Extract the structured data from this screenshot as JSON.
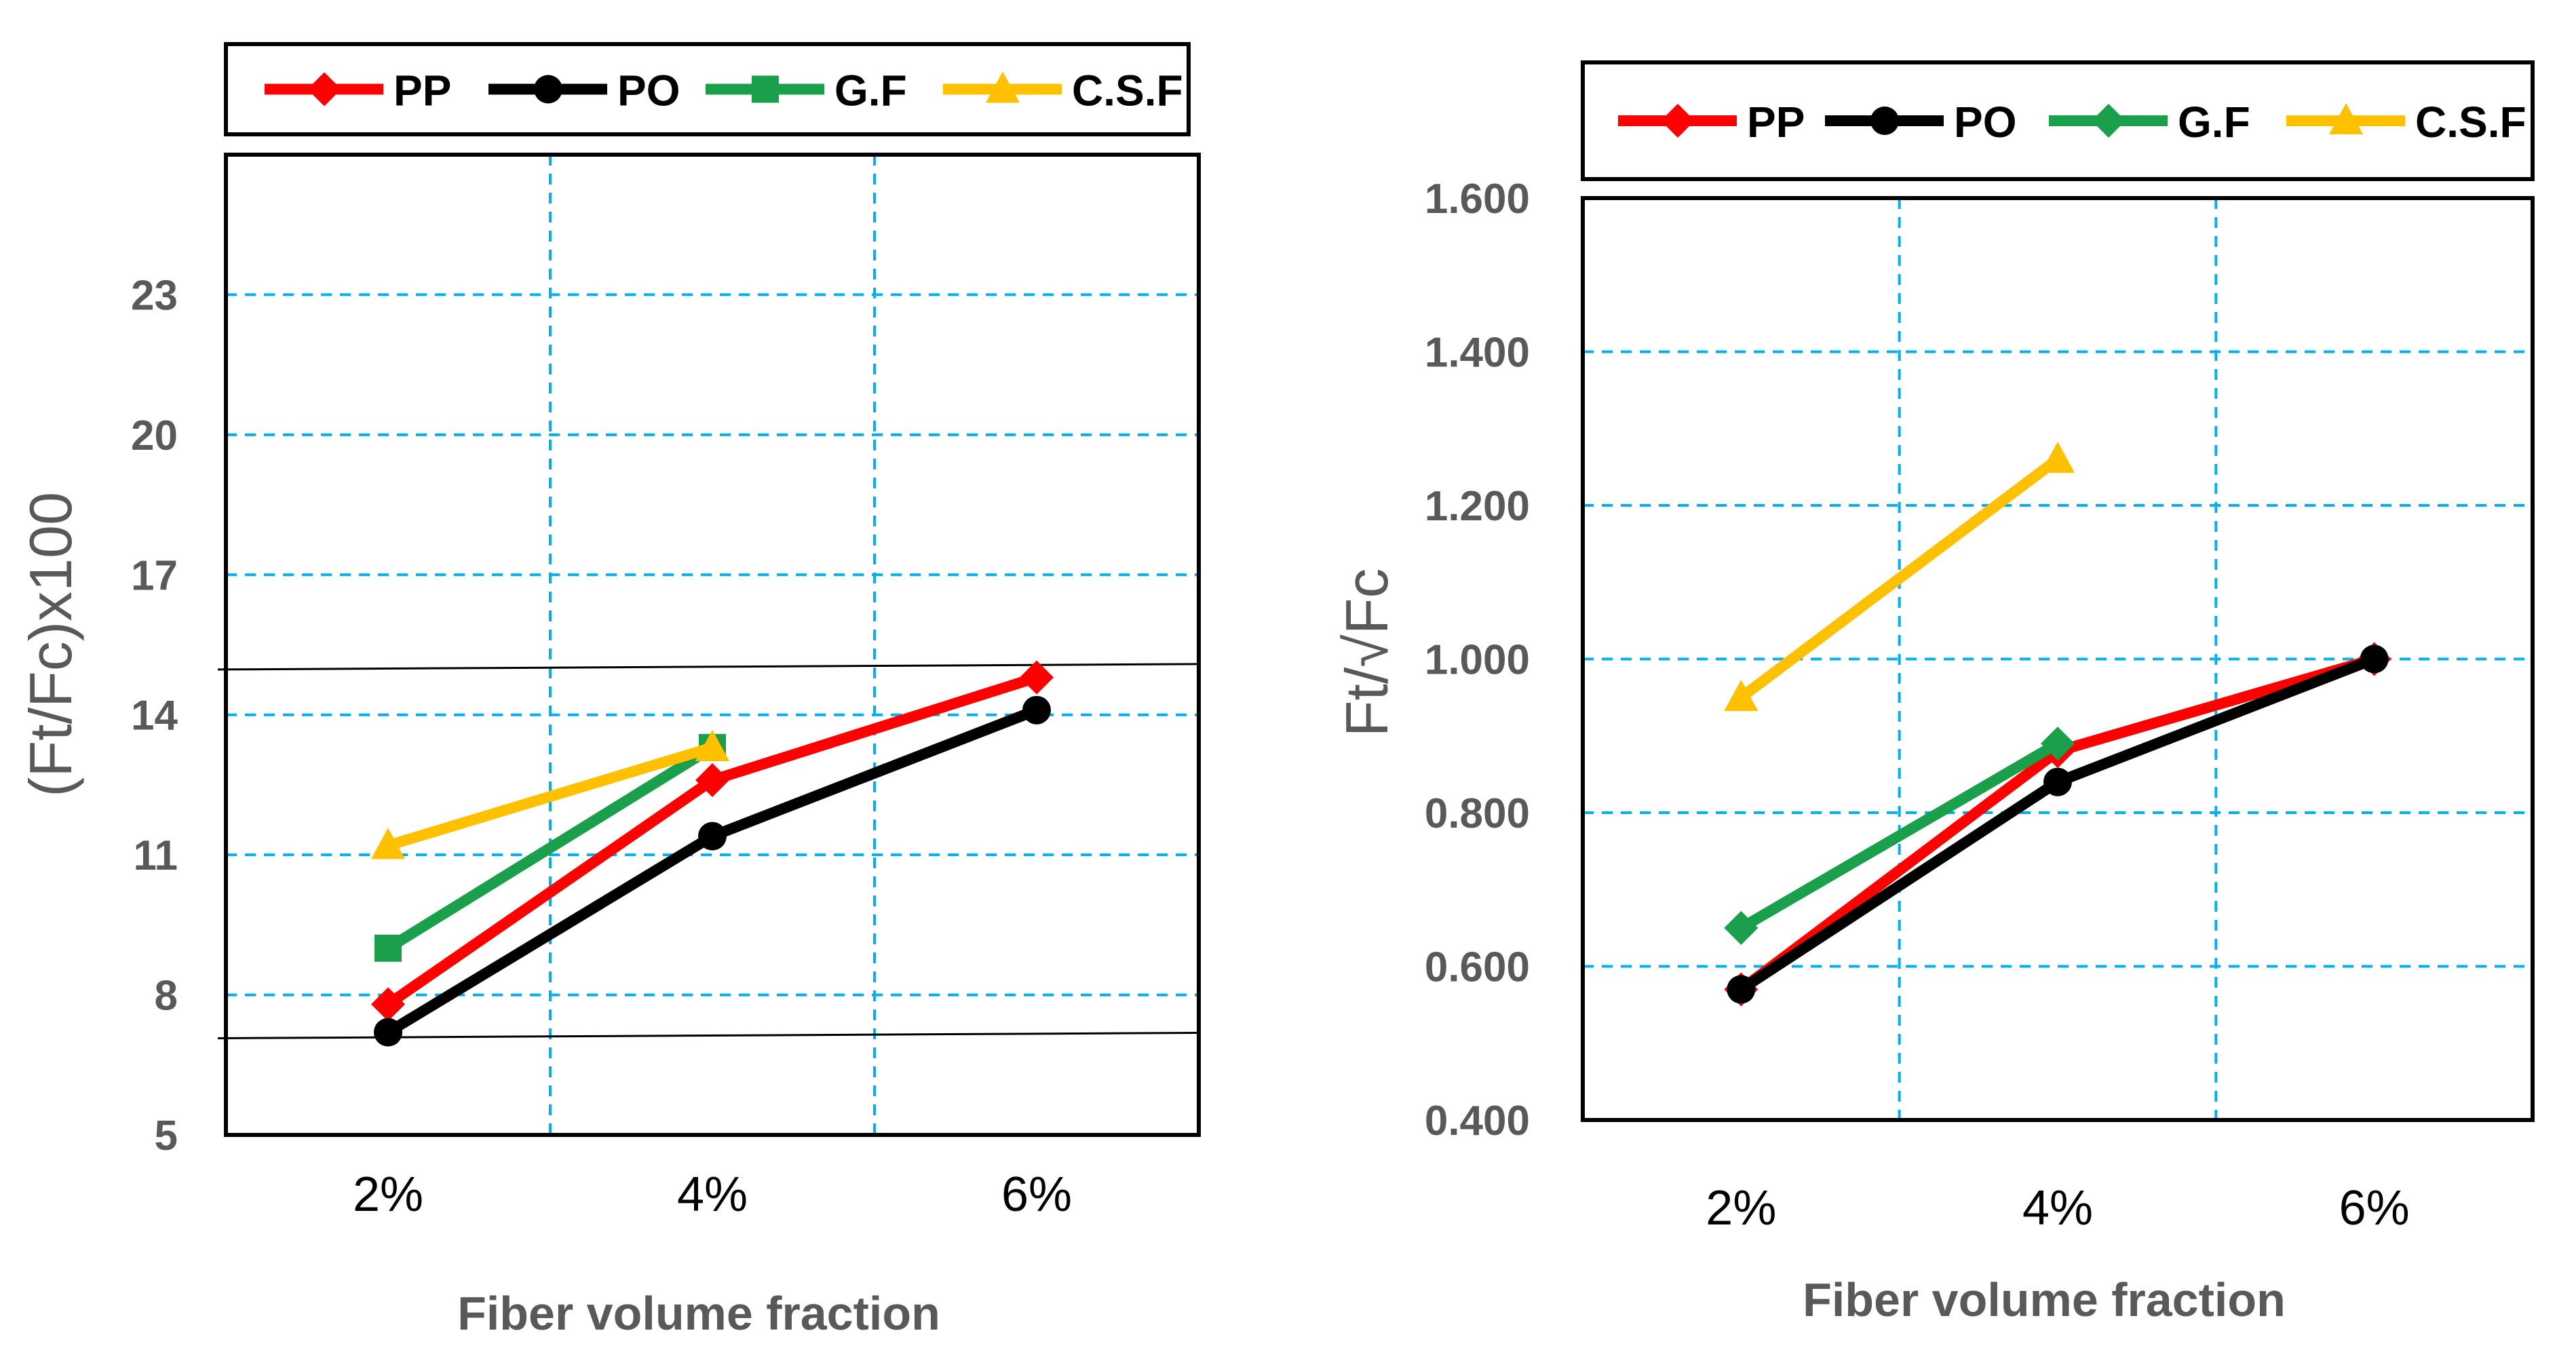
{
  "chart_data": [
    {
      "type": "line",
      "categories": [
        "2%",
        "4%",
        "6%"
      ],
      "xlabel": "Fiber volume fraction",
      "ylabel": "(Ft/Fc)x100",
      "ylim": [
        5,
        26
      ],
      "yticks": [
        5,
        8,
        11,
        14,
        17,
        20,
        23
      ],
      "ytick_labels": [
        "5",
        "8",
        "11",
        "14",
        "17",
        "20",
        "23"
      ],
      "grid": true,
      "legend": "top",
      "series": [
        {
          "name": "PP",
          "color": "#ff0000",
          "marker": "diamond",
          "values": [
            7.8,
            12.6,
            14.8
          ]
        },
        {
          "name": "PO",
          "color": "#000000",
          "marker": "circle",
          "values": [
            7.2,
            11.4,
            14.1
          ]
        },
        {
          "name": "G.F",
          "color": "#1aa04a",
          "marker": "square",
          "values": [
            9.0,
            13.3,
            null
          ]
        },
        {
          "name": "C.S.F",
          "color": "#ffc000",
          "marker": "triangle",
          "values": [
            11.2,
            13.3,
            null
          ]
        }
      ],
      "reference_lines": [
        15.0,
        7.1
      ]
    },
    {
      "type": "line",
      "categories": [
        "2%",
        "4%",
        "6%"
      ],
      "xlabel": "Fiber volume fraction",
      "ylabel": "Ft/√Fc",
      "ylim": [
        0.4,
        1.6
      ],
      "yticks": [
        0.4,
        0.6,
        0.8,
        1.0,
        1.2,
        1.4,
        1.6
      ],
      "ytick_labels": [
        "0.400",
        "0.600",
        "0.800",
        "1.000",
        "1.200",
        "1.400",
        "1.600"
      ],
      "grid": true,
      "legend": "top",
      "series": [
        {
          "name": "PP",
          "color": "#ff0000",
          "marker": "diamond",
          "values": [
            0.57,
            0.88,
            1.0
          ]
        },
        {
          "name": "PO",
          "color": "#000000",
          "marker": "circle",
          "values": [
            0.57,
            0.84,
            1.0
          ]
        },
        {
          "name": "G.F",
          "color": "#1aa04a",
          "marker": "diamond",
          "values": [
            0.65,
            0.89,
            null
          ]
        },
        {
          "name": "C.S.F",
          "color": "#ffc000",
          "marker": "triangle",
          "values": [
            0.95,
            1.26,
            null
          ]
        }
      ]
    }
  ]
}
